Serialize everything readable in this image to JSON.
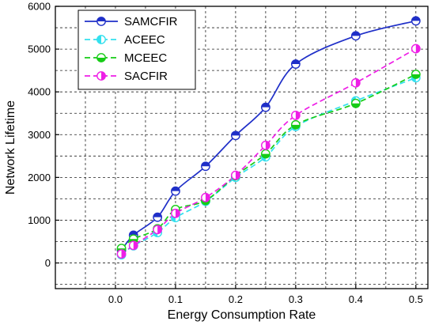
{
  "chart_data": {
    "type": "line",
    "title": "",
    "xlabel": "Energy Consumption Rate",
    "ylabel": "Network Lifetime",
    "xlim": [
      -0.1,
      0.52
    ],
    "ylim": [
      -600,
      6000
    ],
    "xticks": [
      0.0,
      0.1,
      0.2,
      0.3,
      0.4,
      0.5
    ],
    "xtick_labels": [
      "0.0",
      "0.1",
      "0.2",
      "0.3",
      "0.4",
      "0.5"
    ],
    "yticks": [
      0,
      1000,
      2000,
      3000,
      4000,
      5000,
      6000
    ],
    "ytick_labels": [
      "0",
      "1000",
      "2000",
      "3000",
      "4000",
      "5000",
      "6000"
    ],
    "grid": true,
    "legend_position": "top-left",
    "x": [
      0.01,
      0.03,
      0.07,
      0.1,
      0.15,
      0.2,
      0.25,
      0.3,
      0.4,
      0.5
    ],
    "series": [
      {
        "name": "SAMCFIR",
        "color": "#1f2fc8",
        "dashed": false,
        "values": [
          300,
          650,
          1070,
          1680,
          2260,
          2980,
          3640,
          4650,
          5310,
          5660
        ]
      },
      {
        "name": "ACEEC",
        "color": "#33e0ee",
        "dashed": true,
        "values": [
          190,
          400,
          710,
          1060,
          1440,
          2000,
          2480,
          3190,
          3790,
          4330
        ]
      },
      {
        "name": "MCEEC",
        "color": "#16cc16",
        "dashed": true,
        "values": [
          340,
          560,
          800,
          1250,
          1460,
          2040,
          2550,
          3230,
          3730,
          4410
        ]
      },
      {
        "name": "SACFIR",
        "color": "#ee1ee6",
        "dashed": true,
        "values": [
          210,
          410,
          780,
          1160,
          1530,
          2050,
          2750,
          3450,
          4210,
          5010
        ]
      }
    ]
  }
}
